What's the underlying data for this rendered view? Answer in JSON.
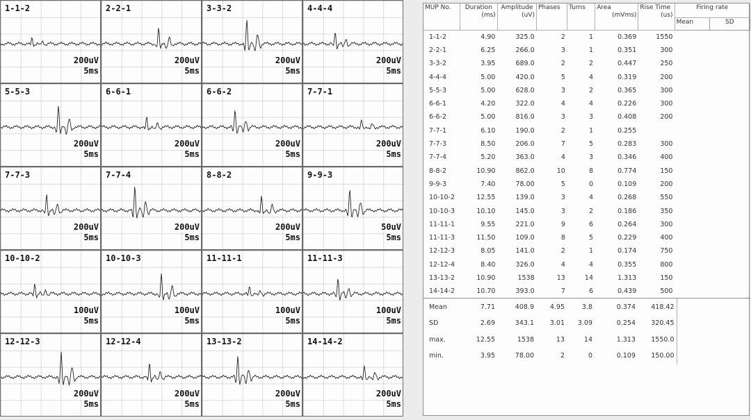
{
  "waveforms": [
    {
      "label": "1-1-2",
      "amp": "200uV",
      "time": "5ms"
    },
    {
      "label": "2-2-1",
      "amp": "200uV",
      "time": "5ms"
    },
    {
      "label": "3-3-2",
      "amp": "200uV",
      "time": "5ms"
    },
    {
      "label": "4-4-4",
      "amp": "200uV",
      "time": "5ms"
    },
    {
      "label": "5-5-3",
      "amp": "200uV",
      "time": "5ms"
    },
    {
      "label": "6-6-1",
      "amp": "200uV",
      "time": "5ms"
    },
    {
      "label": "6-6-2",
      "amp": "200uV",
      "time": "5ms"
    },
    {
      "label": "7-7-1",
      "amp": "200uV",
      "time": "5ms"
    },
    {
      "label": "7-7-3",
      "amp": "200uV",
      "time": "5ms"
    },
    {
      "label": "7-7-4",
      "amp": "200uV",
      "time": "5ms"
    },
    {
      "label": "8-8-2",
      "amp": "200uV",
      "time": "5ms"
    },
    {
      "label": "9-9-3",
      "amp": "50uV",
      "time": "5ms"
    },
    {
      "label": "10-10-2",
      "amp": "100uV",
      "time": "5ms"
    },
    {
      "label": "10-10-3",
      "amp": "100uV",
      "time": "5ms"
    },
    {
      "label": "11-11-1",
      "amp": "100uV",
      "time": "5ms"
    },
    {
      "label": "11-11-3",
      "amp": "100uV",
      "time": "5ms"
    },
    {
      "label": "12-12-3",
      "amp": "200uV",
      "time": "5ms"
    },
    {
      "label": "12-12-4",
      "amp": "200uV",
      "time": "5ms"
    },
    {
      "label": "13-13-2",
      "amp": "200uV",
      "time": "5ms"
    },
    {
      "label": "14-14-2",
      "amp": "200uV",
      "time": "5ms"
    }
  ],
  "table": {
    "headers": {
      "mup": "MUP No.",
      "duration": "Duration",
      "duration_unit": "(ms)",
      "amplitude": "Amplitude",
      "amplitude_unit": "(uV)",
      "phases": "Phases",
      "turns": "Turns",
      "area": "Area",
      "area_unit": "(mVms)",
      "rise": "Rise Time",
      "rise_unit": "(us)",
      "firing": "Firing rate",
      "mean": "Mean",
      "sd": "SD"
    },
    "rows": [
      [
        "1-1-2",
        "4.90",
        "325.0",
        "2",
        "1",
        "0.369",
        "1550"
      ],
      [
        "2-2-1",
        "6.25",
        "266.0",
        "3",
        "1",
        "0.351",
        "300"
      ],
      [
        "3-3-2",
        "3.95",
        "689.0",
        "2",
        "2",
        "0.447",
        "250"
      ],
      [
        "4-4-4",
        "5.00",
        "420.0",
        "5",
        "4",
        "0.319",
        "200"
      ],
      [
        "5-5-3",
        "5.00",
        "628.0",
        "3",
        "2",
        "0.365",
        "300"
      ],
      [
        "6-6-1",
        "4.20",
        "322.0",
        "4",
        "4",
        "0.226",
        "300"
      ],
      [
        "6-6-2",
        "5.00",
        "816.0",
        "3",
        "3",
        "0.408",
        "200"
      ],
      [
        "7-7-1",
        "6.10",
        "190.0",
        "2",
        "1",
        "0.255",
        ""
      ],
      [
        "7-7-3",
        "8.50",
        "206.0",
        "7",
        "5",
        "0.283",
        "300"
      ],
      [
        "7-7-4",
        "5.20",
        "363.0",
        "4",
        "3",
        "0.346",
        "400"
      ],
      [
        "8-8-2",
        "10.90",
        "862.0",
        "10",
        "8",
        "0.774",
        "150"
      ],
      [
        "9-9-3",
        "7.40",
        "78.00",
        "5",
        "0",
        "0.109",
        "200"
      ],
      [
        "10-10-2",
        "12.55",
        "139.0",
        "3",
        "4",
        "0.268",
        "550"
      ],
      [
        "10-10-3",
        "10.10",
        "145.0",
        "3",
        "2",
        "0.186",
        "350"
      ],
      [
        "11-11-1",
        "9.55",
        "221.0",
        "9",
        "6",
        "0.264",
        "300"
      ],
      [
        "11-11-3",
        "11.50",
        "109.0",
        "8",
        "5",
        "0.229",
        "400"
      ],
      [
        "12-12-3",
        "8.05",
        "141.0",
        "2",
        "1",
        "0.174",
        "750"
      ],
      [
        "12-12-4",
        "8.40",
        "326.0",
        "4",
        "4",
        "0.355",
        "800"
      ],
      [
        "13-13-2",
        "10.90",
        "1538",
        "13",
        "14",
        "1.313",
        "150"
      ],
      [
        "14-14-2",
        "10.70",
        "393.0",
        "7",
        "6",
        "0.439",
        "500"
      ]
    ],
    "summary": [
      [
        "Mean",
        "7.71",
        "408.9",
        "4.95",
        "3.8",
        "0.374",
        "418.42"
      ],
      [
        "SD",
        "2.69",
        "343.1",
        "3.01",
        "3.09",
        "0.254",
        "320.45"
      ],
      [
        "max.",
        "12.55",
        "1538",
        "13",
        "14",
        "1.313",
        "1550.0"
      ],
      [
        "min.",
        "3.95",
        "78.00",
        "2",
        "0",
        "0.109",
        "150.00"
      ]
    ]
  }
}
